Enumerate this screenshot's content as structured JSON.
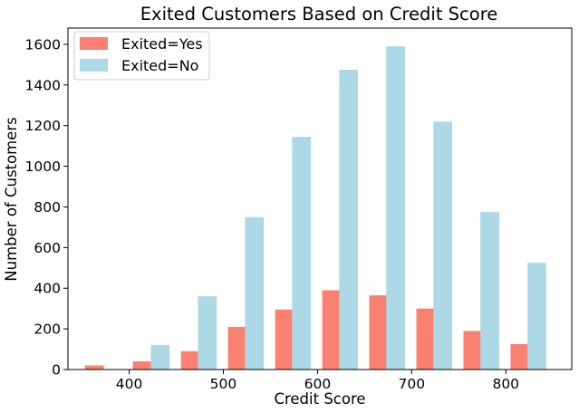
{
  "chart_data": {
    "type": "bar",
    "title": "Exited Customers Based on Credit Score",
    "xlabel": "Credit Score",
    "ylabel": "Number of Customers",
    "xlim": [
      335,
      870
    ],
    "ylim": [
      0,
      1680
    ],
    "xticks": [
      400,
      500,
      600,
      700,
      800
    ],
    "yticks": [
      0,
      200,
      400,
      600,
      800,
      1000,
      1200,
      1400,
      1600
    ],
    "grid": false,
    "legend_position": "top-left",
    "bins": [
      {
        "yes_x": 362,
        "no_x": 433
      },
      {
        "yes_x": 416,
        "no_x": 484
      },
      {
        "yes_x": 466,
        "no_x": 534
      },
      {
        "yes_x": 516,
        "no_x": 584
      },
      {
        "yes_x": 566,
        "no_x": 634
      },
      {
        "yes_x": 616,
        "no_x": 684
      },
      {
        "yes_x": 666,
        "no_x": 734
      },
      {
        "yes_x": 716,
        "no_x": 784
      },
      {
        "yes_x": 766,
        "no_x": 834
      },
      {
        "yes_x": 816,
        "no_x": null
      }
    ],
    "bar_width": 20,
    "series": [
      {
        "name": "Exited=Yes",
        "color": "#fa8072",
        "x": [
          363,
          414,
          465,
          515,
          565,
          615,
          665,
          715,
          765,
          815
        ],
        "values": [
          20,
          40,
          90,
          210,
          295,
          390,
          365,
          300,
          190,
          125
        ]
      },
      {
        "name": "Exited=No",
        "color": "#add8e6",
        "x": [
          433,
          483,
          533,
          583,
          633,
          683,
          733,
          783,
          833
        ],
        "values": [
          120,
          360,
          750,
          1145,
          1475,
          1590,
          1220,
          775,
          525
        ]
      }
    ]
  }
}
